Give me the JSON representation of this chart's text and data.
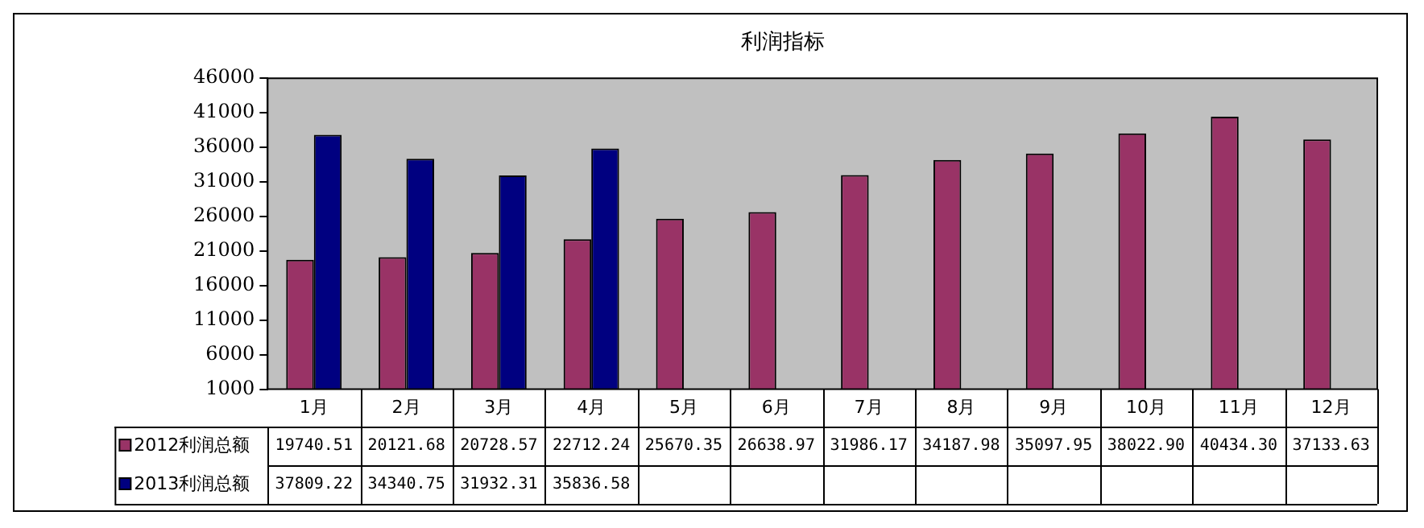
{
  "chart_data": {
    "type": "bar",
    "title": "利润指标",
    "categories": [
      "1月",
      "2月",
      "3月",
      "4月",
      "5月",
      "6月",
      "7月",
      "8月",
      "9月",
      "10月",
      "11月",
      "12月"
    ],
    "series": [
      {
        "name": "2012利润总额",
        "color": "#993366",
        "values": [
          19740.51,
          20121.68,
          20728.57,
          22712.24,
          25670.35,
          26638.97,
          31986.17,
          34187.98,
          35097.95,
          38022.9,
          40434.3,
          37133.63
        ],
        "value_labels": [
          "19740.51",
          "20121.68",
          "20728.57",
          "22712.24",
          "25670.35",
          "26638.97",
          "31986.17",
          "34187.98",
          "35097.95",
          "38022.90",
          "40434.30",
          "37133.63"
        ]
      },
      {
        "name": "2013利润总额",
        "color": "#000080",
        "values": [
          37809.22,
          34340.75,
          31932.31,
          35836.58,
          null,
          null,
          null,
          null,
          null,
          null,
          null,
          null
        ],
        "value_labels": [
          "37809.22",
          "34340.75",
          "31932.31",
          "35836.58",
          null,
          null,
          null,
          null,
          null,
          null,
          null,
          null
        ]
      }
    ],
    "ylim": [
      1000,
      46000
    ],
    "yticks": [
      1000,
      6000,
      11000,
      16000,
      21000,
      26000,
      31000,
      36000,
      41000,
      46000
    ],
    "grid": false,
    "legend": "bottom"
  }
}
